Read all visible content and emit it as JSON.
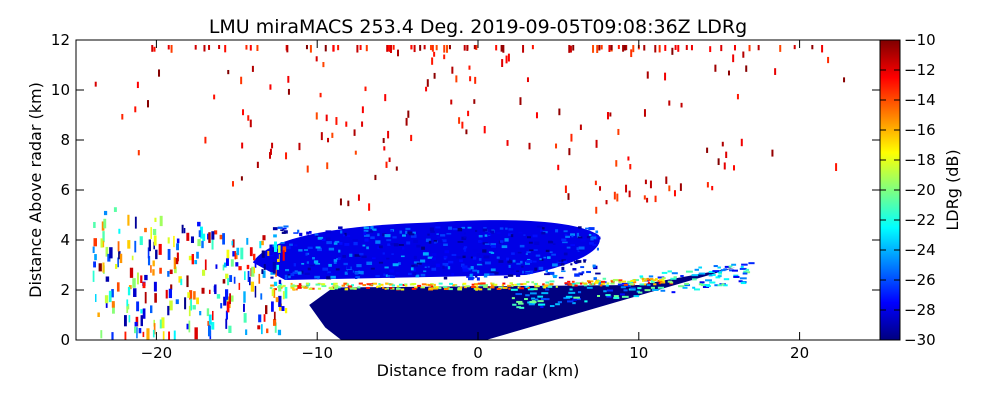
{
  "chart_data": {
    "type": "heatmap",
    "title": "LMU miraMACS 253.4 Deg. 2019-09-05T09:08:36Z  LDRg",
    "xlabel": "Distance from radar (km)",
    "ylabel": "Distance Above radar  (km)",
    "xlim": [
      -25,
      25
    ],
    "ylim": [
      0,
      12
    ],
    "x_ticks": [
      -20,
      -10,
      0,
      10,
      20
    ],
    "y_ticks": [
      0,
      2,
      4,
      6,
      8,
      10,
      12
    ],
    "colorbar": {
      "label": "LDRg (dB)",
      "range": [
        -30,
        -10
      ],
      "ticks": [
        -30,
        -28,
        -26,
        -24,
        -22,
        -20,
        -18,
        -16,
        -14,
        -12,
        -10
      ],
      "colormap": "jet"
    },
    "grid": false,
    "regions": [
      {
        "name": "low-level echo",
        "x_range": [
          -9,
          16
        ],
        "z_range": [
          0,
          2.2
        ],
        "ldr": -30
      },
      {
        "name": "melting layer band",
        "x_range": [
          -13,
          11
        ],
        "z_range": [
          2.0,
          2.3
        ],
        "ldr": -17
      },
      {
        "name": "upper cloud",
        "x_range": [
          -14,
          8
        ],
        "z_range": [
          2.3,
          4.7
        ],
        "ldr": -28
      },
      {
        "name": "scattered noise",
        "x_range": [
          -23,
          23
        ],
        "z_range": [
          4.5,
          11.5
        ],
        "ldr": -10
      }
    ]
  },
  "colors": {
    "jet_dark_blue": "#00007f",
    "jet_blue": "#0000ff",
    "jet_cyan": "#00ffff",
    "jet_yellow": "#ffff00",
    "jet_red": "#ff0000",
    "jet_dark_red": "#7f0000"
  }
}
